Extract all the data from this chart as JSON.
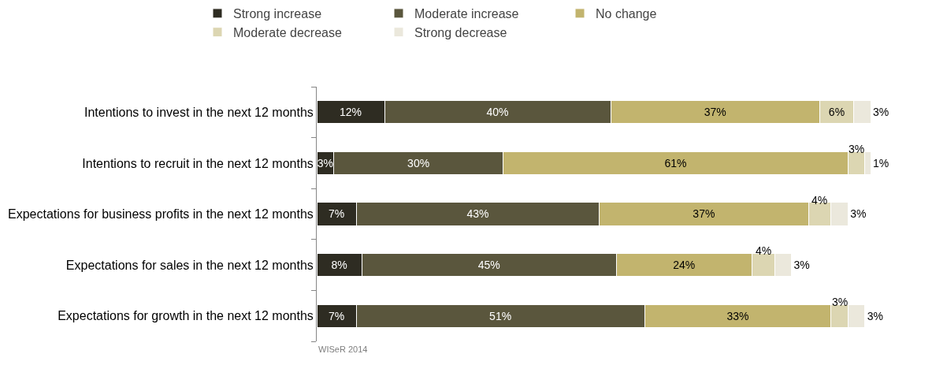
{
  "chart_data": {
    "type": "bar",
    "orientation": "horizontal",
    "stacked": true,
    "legend": "top",
    "categories": [
      "Intentions to invest in the next 12 months",
      "Intentions to recruit in the next 12 months",
      "Expectations for business profits in the next 12 months",
      "Expectations for sales in the next 12 months",
      "Expectations for growth in the next 12 months"
    ],
    "series": [
      {
        "name": "Strong increase",
        "color": "#2e2c22",
        "values": [
          12,
          3,
          7,
          8,
          7
        ],
        "value_labels": [
          "12%",
          "3%",
          "7%",
          "8%",
          "7%"
        ]
      },
      {
        "name": "Moderate increase",
        "color": "#5a563d",
        "values": [
          40,
          30,
          43,
          45,
          51
        ],
        "value_labels": [
          "40%",
          "30%",
          "43%",
          "45%",
          "51%"
        ]
      },
      {
        "name": "No change",
        "color": "#c2b46e",
        "values": [
          37,
          61,
          37,
          24,
          33
        ],
        "value_labels": [
          "37%",
          "61%",
          "37%",
          "24%",
          "33%"
        ]
      },
      {
        "name": "Moderate decrease",
        "color": "#dcd6b2",
        "values": [
          6,
          3,
          4,
          4,
          3
        ],
        "value_labels": [
          "6%",
          "3%",
          "4%",
          "4%",
          "3%"
        ]
      },
      {
        "name": "Strong decrease",
        "color": "#ebe8dc",
        "values": [
          3,
          1,
          3,
          3,
          3
        ],
        "value_labels": [
          "3%",
          "1%",
          "3%",
          "3%",
          "3%"
        ]
      }
    ],
    "annotations": [
      "WISeR 2014"
    ]
  }
}
